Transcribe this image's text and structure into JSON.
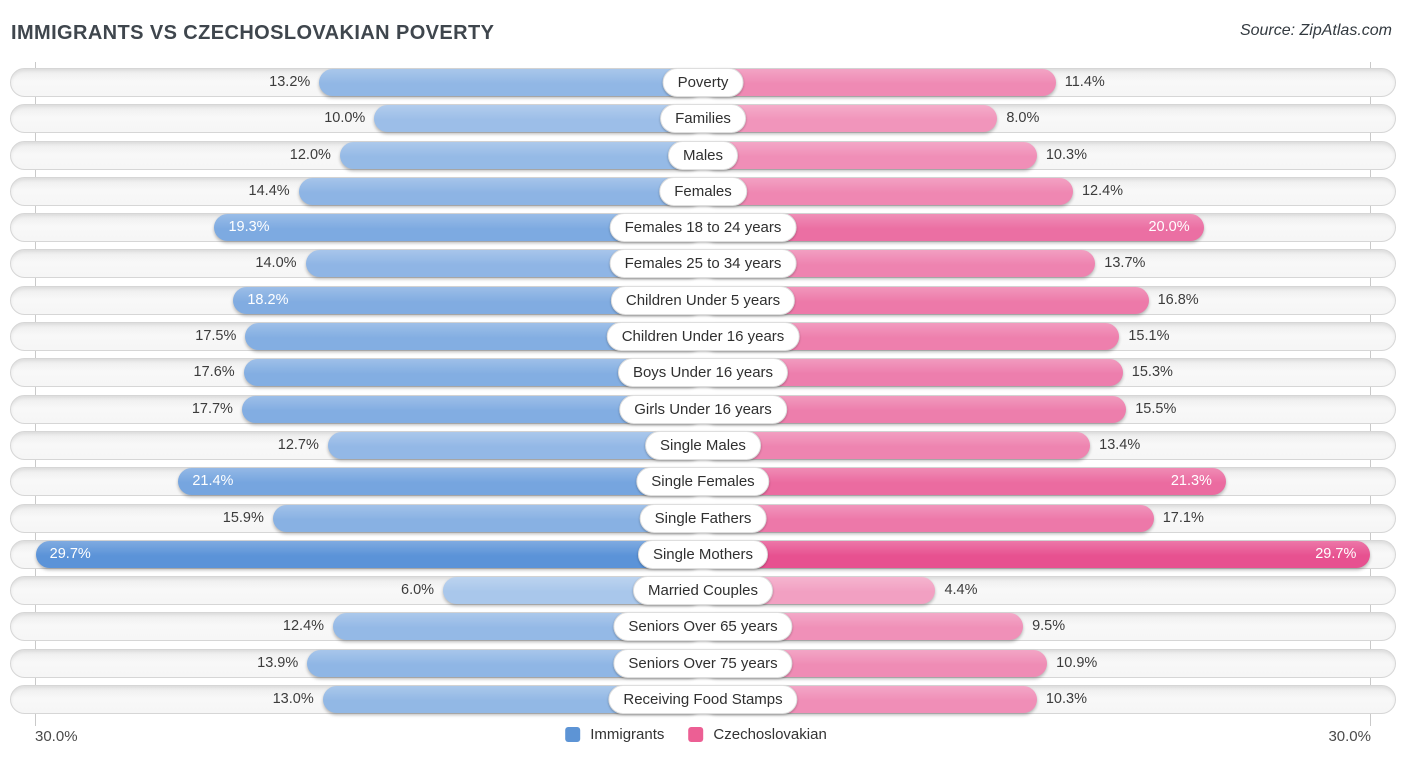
{
  "title": "IMMIGRANTS VS CZECHOSLOVAKIAN POVERTY",
  "source": "Source: ZipAtlas.com",
  "axis": {
    "left_max_label": "30.0%",
    "right_max_label": "30.0%",
    "max_value": 30
  },
  "legend": [
    {
      "label": "Immigrants",
      "color": "#5d94d5"
    },
    {
      "label": "Czechoslovakian",
      "color": "#ec5f94"
    }
  ],
  "chart_data": {
    "type": "bar",
    "orientation": "bidirectional-horizontal",
    "title": "IMMIGRANTS VS CZECHOSLOVAKIAN POVERTY",
    "xlim": [
      -30,
      30
    ],
    "value_suffix": "%",
    "inside_label_threshold": 18,
    "categories": [
      "Poverty",
      "Families",
      "Males",
      "Females",
      "Females 18 to 24 years",
      "Females 25 to 34 years",
      "Children Under 5 years",
      "Children Under 16 years",
      "Boys Under 16 years",
      "Girls Under 16 years",
      "Single Males",
      "Single Females",
      "Single Fathers",
      "Single Mothers",
      "Married Couples",
      "Seniors Over 65 years",
      "Seniors Over 75 years",
      "Receiving Food Stamps"
    ],
    "series": [
      {
        "name": "Immigrants",
        "values": [
          13.2,
          10.0,
          12.0,
          14.4,
          19.3,
          14.0,
          18.2,
          17.5,
          17.6,
          17.7,
          12.7,
          21.4,
          15.9,
          29.7,
          6.0,
          12.4,
          13.9,
          13.0
        ]
      },
      {
        "name": "Czechoslovakian",
        "values": [
          11.4,
          8.0,
          10.3,
          12.4,
          20.0,
          13.7,
          16.8,
          15.1,
          15.3,
          15.5,
          13.4,
          21.3,
          17.1,
          29.7,
          4.4,
          9.5,
          10.9,
          10.3
        ]
      }
    ]
  }
}
